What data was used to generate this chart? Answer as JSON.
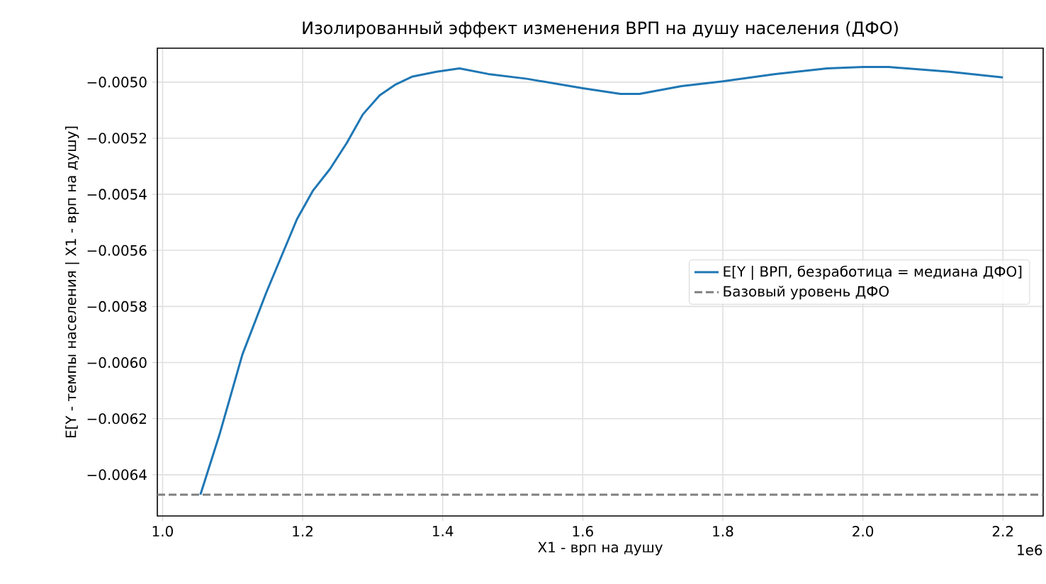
{
  "chart_data": {
    "type": "line",
    "title": "Изолированный эффект изменения ВРП на душу населения (ДФО)",
    "xlabel": "X1 - врп на душу",
    "ylabel": "E[Y - темпы населения | X1 - врп на душу]",
    "annotations": [
      "1e6"
    ],
    "x": [
      1.054,
      1.081,
      1.114,
      1.148,
      1.192,
      1.215,
      1.239,
      1.263,
      1.286,
      1.31,
      1.333,
      1.357,
      1.391,
      1.424,
      1.465,
      1.52,
      1.6,
      1.654,
      1.681,
      1.741,
      1.8,
      1.875,
      1.949,
      2.0,
      2.037,
      2.124,
      2.2
    ],
    "series": [
      {
        "name": "E[Y | ВРП, безработица = медиана ДФО]",
        "color": "#1f77b4",
        "values": [
          -0.006471,
          -0.006259,
          -0.005971,
          -0.005751,
          -0.005488,
          -0.005386,
          -0.00531,
          -0.005217,
          -0.005115,
          -0.005047,
          -0.005008,
          -0.00498,
          -0.004963,
          -0.004951,
          -0.004971,
          -0.004988,
          -0.005022,
          -0.005042,
          -0.005042,
          -0.005014,
          -0.004997,
          -0.004971,
          -0.004951,
          -0.004946,
          -0.004946,
          -0.004963,
          -0.004983
        ]
      }
    ],
    "ref_lines": [
      {
        "axis": "y",
        "value": -0.006471,
        "label": "Базовый уровень ДФО",
        "color": "#808080",
        "line_style": "dashed"
      }
    ],
    "xlim": [
      0.9925,
      2.2575
    ],
    "ylim": [
      -0.006547,
      -0.004879
    ],
    "xticks": [
      {
        "value": 1.0,
        "label": "1.0"
      },
      {
        "value": 1.2,
        "label": "1.2"
      },
      {
        "value": 1.4,
        "label": "1.4"
      },
      {
        "value": 1.6,
        "label": "1.6"
      },
      {
        "value": 1.8,
        "label": "1.8"
      },
      {
        "value": 2.0,
        "label": "2.0"
      },
      {
        "value": 2.2,
        "label": "2.2"
      }
    ],
    "yticks": [
      {
        "value": -0.0064,
        "label": "−0.0064"
      },
      {
        "value": -0.0062,
        "label": "−0.0062"
      },
      {
        "value": -0.006,
        "label": "−0.0060"
      },
      {
        "value": -0.0058,
        "label": "−0.0058"
      },
      {
        "value": -0.0056,
        "label": "−0.0056"
      },
      {
        "value": -0.0054,
        "label": "−0.0054"
      },
      {
        "value": -0.0052,
        "label": "−0.0052"
      },
      {
        "value": -0.005,
        "label": "−0.0050"
      }
    ],
    "grid": true,
    "legend": "center right",
    "marker": "none",
    "line_style": "solid"
  }
}
